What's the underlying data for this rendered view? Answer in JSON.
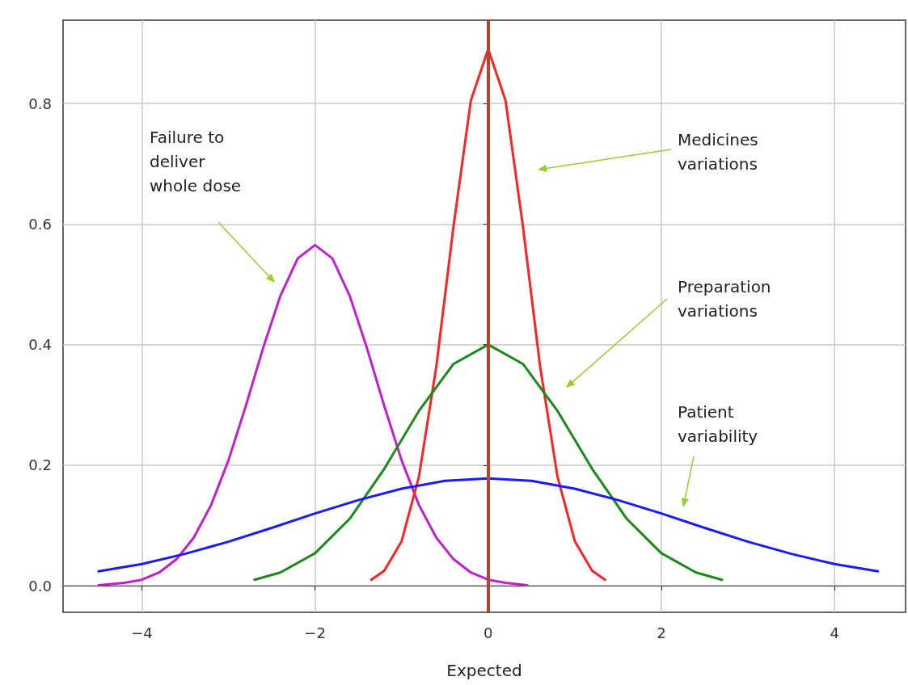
{
  "chart_data": {
    "type": "line",
    "xlabel": "Expected",
    "xlim": [
      -4.91,
      4.82
    ],
    "xticks": [
      {
        "value": -4,
        "label": "−4"
      },
      {
        "value": -2,
        "label": "−2"
      },
      0,
      2,
      4
    ],
    "ylim": [
      -0.044,
      0.938
    ],
    "yticks": [
      {
        "value": 0,
        "label": "0.0"
      },
      0.2,
      0.4,
      0.6,
      0.8
    ],
    "grid": true,
    "marker": "none",
    "line_style": "solid",
    "series": [
      {
        "color": "#c21fd1",
        "x": [
          -4.5,
          -4.2,
          -4.0,
          -3.8,
          -3.6,
          -3.4,
          -3.2,
          -3.0,
          -2.8,
          -2.6,
          -2.4,
          -2.2,
          -2.0,
          -1.8,
          -1.6,
          -1.4,
          -1.2,
          -1.0,
          -0.8,
          -0.6,
          -0.4,
          -0.2,
          0.0,
          0.2,
          0.45
        ],
        "values": [
          0.001,
          0.005,
          0.01,
          0.022,
          0.044,
          0.08,
          0.134,
          0.208,
          0.298,
          0.394,
          0.481,
          0.543,
          0.565,
          0.543,
          0.481,
          0.394,
          0.298,
          0.208,
          0.134,
          0.08,
          0.044,
          0.022,
          0.01,
          0.005,
          0.001
        ]
      },
      {
        "color": "#ff2222",
        "x": [
          -1.35,
          -1.2,
          -1.0,
          -0.8,
          -0.6,
          -0.4,
          -0.2,
          0,
          0.2,
          0.4,
          0.6,
          0.8,
          1.0,
          1.2,
          1.35
        ],
        "values": [
          0.01,
          0.025,
          0.074,
          0.181,
          0.363,
          0.597,
          0.805,
          0.89,
          0.805,
          0.597,
          0.363,
          0.181,
          0.074,
          0.025,
          0.01
        ]
      },
      {
        "color": "#1a8a1a",
        "x": [
          -2.7,
          -2.4,
          -2.0,
          -1.6,
          -1.2,
          -0.8,
          -0.4,
          0,
          0.4,
          0.8,
          1.2,
          1.6,
          2.0,
          2.4,
          2.7
        ],
        "values": [
          0.01,
          0.022,
          0.054,
          0.111,
          0.194,
          0.29,
          0.368,
          0.4,
          0.368,
          0.29,
          0.194,
          0.111,
          0.054,
          0.022,
          0.01
        ]
      },
      {
        "color": "#1a1aff",
        "x": [
          -4.5,
          -4.0,
          -3.5,
          -3.0,
          -2.5,
          -2.0,
          -1.5,
          -1.0,
          -0.5,
          0,
          0.5,
          1.0,
          1.5,
          2.0,
          2.5,
          3.0,
          3.5,
          4.0,
          4.5
        ],
        "values": [
          0.024,
          0.036,
          0.053,
          0.073,
          0.096,
          0.12,
          0.142,
          0.161,
          0.174,
          0.178,
          0.174,
          0.161,
          0.142,
          0.12,
          0.096,
          0.073,
          0.053,
          0.036,
          0.024
        ]
      }
    ],
    "ref_lines": [
      {
        "axis": "x",
        "value": 0,
        "color": "#b5452d"
      }
    ],
    "annotations": [
      "Failure to deliver whole dose",
      "Medicines variations",
      "Preparation variations",
      "Patient variability"
    ]
  }
}
